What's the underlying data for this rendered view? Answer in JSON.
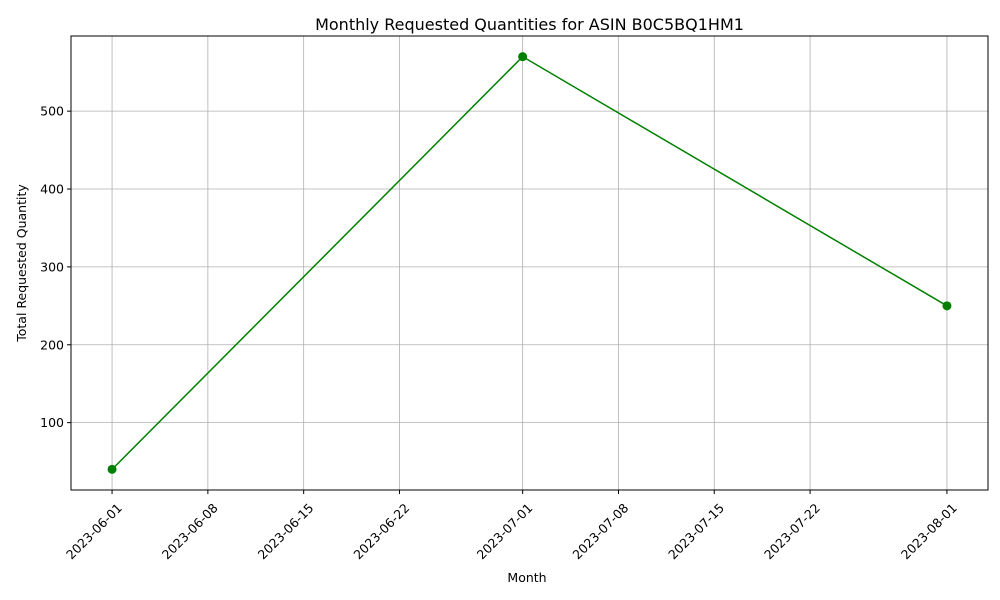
{
  "chart_data": {
    "type": "line",
    "title": "Monthly Requested Quantities for ASIN B0C5BQ1HM1",
    "xlabel": "Month",
    "ylabel": "Total Requested Quantity",
    "x": [
      "2023-06-01",
      "2023-07-01",
      "2023-08-01"
    ],
    "series": [
      {
        "values": [
          40,
          570,
          250
        ],
        "color": "#008000",
        "marker": "circle"
      }
    ],
    "x_ticks": [
      "2023-06-01",
      "2023-06-08",
      "2023-06-15",
      "2023-06-22",
      "2023-07-01",
      "2023-07-08",
      "2023-07-15",
      "2023-07-22",
      "2023-08-01"
    ],
    "y_ticks": [
      100,
      200,
      300,
      400,
      500
    ],
    "xlim": [
      "2023-05-29",
      "2023-08-04"
    ],
    "ylim": [
      13.5,
      596.5
    ],
    "grid": true,
    "legend": false
  }
}
